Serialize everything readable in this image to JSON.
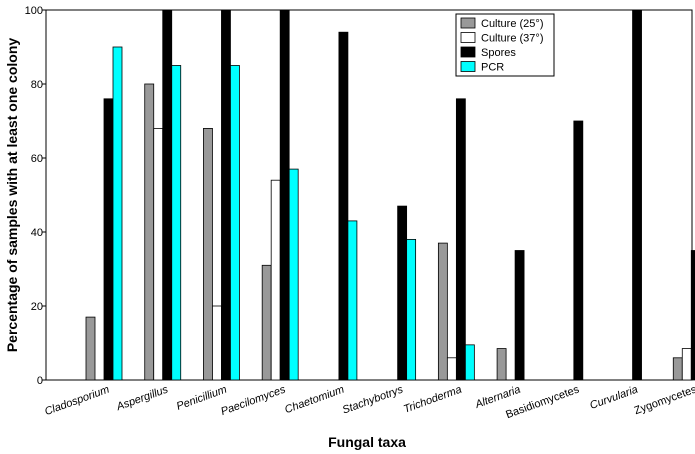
{
  "chart_data": {
    "type": "bar",
    "title": "",
    "xlabel": "Fungal taxa",
    "ylabel": "Percentage of samples with at least one colony",
    "ylim": [
      0,
      100
    ],
    "yticks": [
      0,
      20,
      40,
      60,
      80,
      100
    ],
    "grid": false,
    "legend_position": "top-right",
    "categories": [
      "Cladosporium",
      "Aspergillus",
      "Penicillium",
      "Paecilomyces",
      "Chaetomium",
      "Stachybotrys",
      "Trichoderma",
      "Alternaria",
      "Basidiomycetes",
      "Curvularia",
      "Zygomycetes"
    ],
    "italic_categories": [
      true,
      true,
      true,
      true,
      true,
      true,
      true,
      true,
      false,
      true,
      false
    ],
    "series": [
      {
        "name": "Culture (25°)",
        "color": "#999999",
        "values": [
          17,
          80,
          68,
          31,
          0,
          0,
          37,
          8.5,
          0,
          0,
          6
        ]
      },
      {
        "name": "Culture (37°)",
        "color": "#ffffff",
        "values": [
          0,
          68,
          20,
          54,
          0,
          0,
          6,
          0,
          0,
          0,
          8.5
        ]
      },
      {
        "name": "Spores",
        "color": "#000000",
        "values": [
          76,
          100,
          100,
          100,
          94,
          47,
          76,
          35,
          70,
          100,
          35
        ]
      },
      {
        "name": "PCR",
        "color": "#00ffff",
        "values": [
          90,
          85,
          85,
          57,
          43,
          38,
          9.5,
          0,
          0,
          0,
          0
        ]
      }
    ]
  }
}
